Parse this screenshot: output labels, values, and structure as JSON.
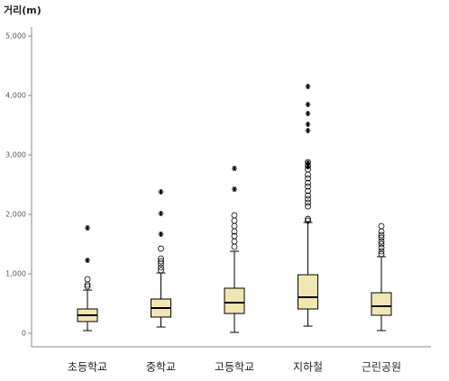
{
  "chart_data": {
    "type": "boxplot",
    "y_label": "거리(m)",
    "categories": [
      "초등학교",
      "중학교",
      "고등학교",
      "지하철",
      "근린공원"
    ],
    "color": "#f1e6b2",
    "ylim": [
      -227,
      5152
    ],
    "yticks": [
      {
        "value": 0,
        "label": "0"
      },
      {
        "value": 1000,
        "label": "1,000"
      },
      {
        "value": 2000,
        "label": "2,000"
      },
      {
        "value": 3000,
        "label": "3,000"
      },
      {
        "value": 4000,
        "label": "4,000"
      },
      {
        "value": 5000,
        "label": "5,000"
      }
    ],
    "boxes": [
      {
        "min": 45,
        "q1": 197,
        "median": 303,
        "q3": 409,
        "max": 727,
        "outliers": [
          788,
          818,
          909
        ],
        "extremes": [
          1227,
          1773
        ]
      },
      {
        "min": 106,
        "q1": 273,
        "median": 424,
        "q3": 576,
        "max": 1015,
        "outliers": [
          1061,
          1106,
          1167,
          1212,
          1258,
          1424
        ],
        "extremes": [
          1667,
          2015,
          2380
        ]
      },
      {
        "min": 15,
        "q1": 333,
        "median": 515,
        "q3": 758,
        "max": 1379,
        "outliers": [
          1455,
          1545,
          1636,
          1712,
          1803,
          1894,
          1985
        ],
        "extremes": [
          2424,
          2773
        ]
      },
      {
        "min": 121,
        "q1": 409,
        "median": 606,
        "q3": 985,
        "max": 1864,
        "outliers": [
          1894,
          1924,
          2136,
          2197,
          2258,
          2318,
          2394,
          2470,
          2530,
          2606,
          2667,
          2758,
          2818,
          2879
        ],
        "extremes": [
          2803,
          2864,
          3409,
          3515,
          3697,
          3848,
          4152
        ]
      },
      {
        "min": 45,
        "q1": 303,
        "median": 455,
        "q3": 682,
        "max": 1288,
        "outliers": [
          1333,
          1379,
          1439,
          1500,
          1545,
          1606,
          1652,
          1712,
          1803
        ],
        "extremes": []
      }
    ]
  }
}
